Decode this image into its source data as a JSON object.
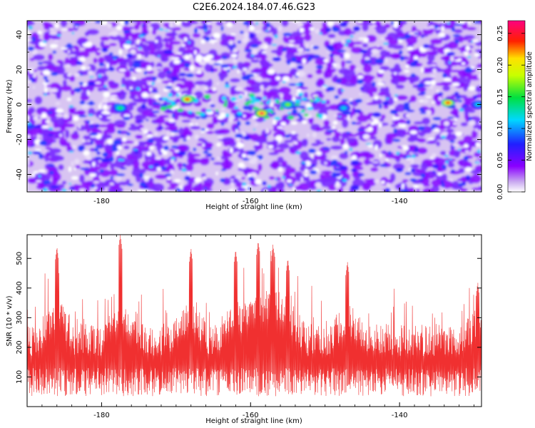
{
  "title": "C2E6.2024.184.07.46.G23",
  "chart_data": [
    {
      "type": "heatmap",
      "xlabel": "Height of straight line (km)",
      "ylabel": "Frequency (Hz)",
      "xlim": [
        -190,
        -129
      ],
      "ylim": [
        -50,
        48
      ],
      "x_ticks": [
        -180,
        -160,
        -140
      ],
      "y_ticks": [
        -40,
        -20,
        0,
        20,
        40
      ],
      "colorbar": {
        "label": "Normalized spectral amplitude",
        "range": [
          0,
          0.27
        ],
        "ticks": [
          "0.00",
          "0.05",
          "0.10",
          "0.15",
          "0.20",
          "0.25"
        ],
        "colormap": "rainbow (white-violet-blue-cyan-green-yellow-red-magenta)"
      },
      "features": [
        {
          "x": -168.5,
          "y": 3,
          "value": 0.24
        },
        {
          "x": -158.5,
          "y": -5,
          "value": 0.26
        },
        {
          "x": -155,
          "y": 0,
          "value": 0.17
        },
        {
          "x": -147.5,
          "y": -2,
          "value": 0.12
        },
        {
          "x": -177.5,
          "y": -2,
          "value": 0.15
        },
        {
          "x": -133.5,
          "y": 1,
          "value": 0.24
        },
        {
          "x": -129.5,
          "y": 0,
          "value": 0.12
        }
      ]
    },
    {
      "type": "line",
      "xlabel": "Height of straight line (km)",
      "ylabel": "SNR (10 * v/v)",
      "xlim": [
        -190,
        -129
      ],
      "ylim": [
        0,
        580
      ],
      "x_ticks": [
        -180,
        -160,
        -140
      ],
      "y_ticks": [
        100,
        200,
        300,
        400,
        500
      ],
      "series": [
        {
          "color": "#f03030",
          "baseline": 150,
          "peaks": [
            {
              "x": -186,
              "y": 540
            },
            {
              "x": -177.5,
              "y": 580
            },
            {
              "x": -168,
              "y": 535
            },
            {
              "x": -162,
              "y": 530
            },
            {
              "x": -159,
              "y": 540
            },
            {
              "x": -157,
              "y": 530
            },
            {
              "x": -155,
              "y": 500
            },
            {
              "x": -147,
              "y": 490
            },
            {
              "x": -129.5,
              "y": 420
            }
          ]
        }
      ]
    }
  ],
  "colors": {
    "accent": "#f03030"
  }
}
